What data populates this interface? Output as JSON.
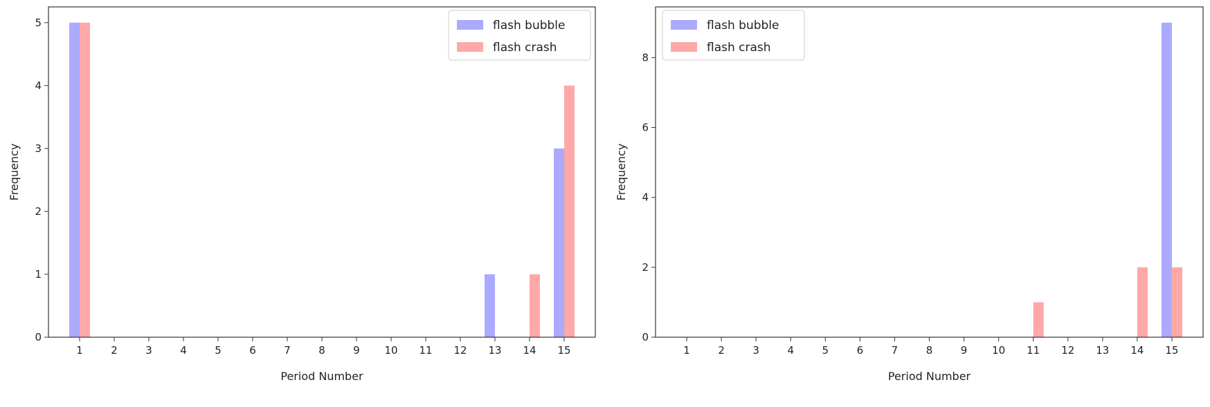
{
  "colors": {
    "flash_bubble": "#aaaaff",
    "flash_crash": "#ffa8a8",
    "axis": "#333333"
  },
  "chart_data": [
    {
      "type": "bar",
      "x": [
        1,
        2,
        3,
        4,
        5,
        6,
        7,
        8,
        9,
        10,
        11,
        12,
        13,
        14,
        15
      ],
      "series": [
        {
          "name": "flash bubble",
          "values": [
            5,
            0,
            0,
            0,
            0,
            0,
            0,
            0,
            0,
            0,
            0,
            0,
            1,
            0,
            3
          ]
        },
        {
          "name": "flash crash",
          "values": [
            5,
            0,
            0,
            0,
            0,
            0,
            0,
            0,
            0,
            0,
            0,
            0,
            0,
            1,
            4
          ]
        }
      ],
      "xlabel": "Period Number",
      "ylabel": "Frequency",
      "xticks": [
        "1",
        "2",
        "3",
        "4",
        "5",
        "6",
        "7",
        "8",
        "9",
        "10",
        "11",
        "12",
        "13",
        "14",
        "15"
      ],
      "yticks": [
        0,
        1,
        2,
        3,
        4,
        5
      ],
      "ylim": [
        0,
        5.25
      ],
      "legend": "top-right",
      "grid": false
    },
    {
      "type": "bar",
      "x": [
        1,
        2,
        3,
        4,
        5,
        6,
        7,
        8,
        9,
        10,
        11,
        12,
        13,
        14,
        15
      ],
      "series": [
        {
          "name": "flash bubble",
          "values": [
            0,
            0,
            0,
            0,
            0,
            0,
            0,
            0,
            0,
            0,
            0,
            0,
            0,
            0,
            9
          ]
        },
        {
          "name": "flash crash",
          "values": [
            0,
            0,
            0,
            0,
            0,
            0,
            0,
            0,
            0,
            0,
            1,
            0,
            0,
            2,
            2
          ]
        }
      ],
      "xlabel": "Period Number",
      "ylabel": "Frequency",
      "xticks": [
        "1",
        "2",
        "3",
        "4",
        "5",
        "6",
        "7",
        "8",
        "9",
        "10",
        "11",
        "12",
        "13",
        "14",
        "15"
      ],
      "yticks": [
        0,
        2,
        4,
        6,
        8
      ],
      "ylim": [
        0,
        9.45
      ],
      "legend": "top-left",
      "grid": false
    }
  ]
}
